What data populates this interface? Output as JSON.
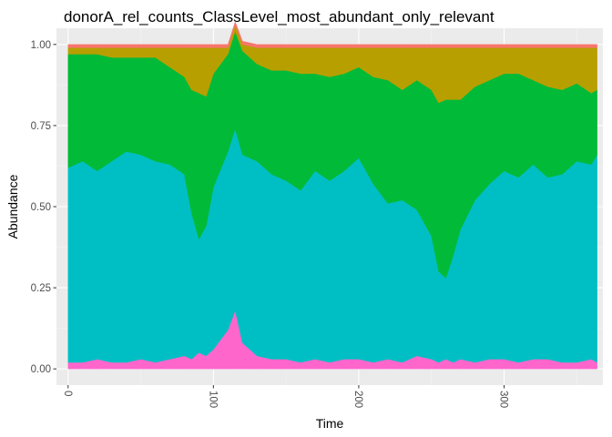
{
  "chart_data": {
    "type": "area",
    "title": "donorA_rel_counts_ClassLevel_most_abundant_only_relevant",
    "xlabel": "Time",
    "ylabel": "Abundance",
    "xlim": [
      -8,
      368
    ],
    "ylim": [
      -0.05,
      1.05
    ],
    "xticks": [
      0,
      100,
      200,
      300
    ],
    "xtick_labels": [
      "0",
      "100",
      "200",
      "300"
    ],
    "yticks": [
      0,
      0.25,
      0.5,
      0.75,
      1.0
    ],
    "ytick_labels": [
      "0.00",
      "0.25",
      "0.50",
      "0.75",
      "1.00"
    ],
    "xtick_label_rotation": 90,
    "grid": true,
    "legend": "none",
    "colors": {
      "panel_background": "#ebebeb",
      "grid_major": "#ffffff",
      "grid_minor": "#f4f4f4"
    },
    "x": [
      0,
      10,
      20,
      30,
      40,
      50,
      60,
      70,
      80,
      85,
      90,
      95,
      100,
      110,
      115,
      120,
      130,
      140,
      150,
      160,
      170,
      180,
      190,
      200,
      210,
      220,
      230,
      240,
      250,
      255,
      260,
      265,
      270,
      280,
      290,
      300,
      310,
      320,
      330,
      340,
      350,
      360,
      364
    ],
    "series": [
      {
        "color": "#ff66cc",
        "values": [
          0.02,
          0.02,
          0.03,
          0.02,
          0.02,
          0.03,
          0.02,
          0.03,
          0.04,
          0.03,
          0.05,
          0.04,
          0.06,
          0.12,
          0.18,
          0.08,
          0.04,
          0.03,
          0.03,
          0.02,
          0.03,
          0.02,
          0.03,
          0.03,
          0.02,
          0.03,
          0.02,
          0.04,
          0.03,
          0.02,
          0.03,
          0.02,
          0.03,
          0.02,
          0.03,
          0.03,
          0.02,
          0.03,
          0.03,
          0.02,
          0.02,
          0.03,
          0.02
        ]
      },
      {
        "color": "#00bfc4",
        "values": [
          0.6,
          0.62,
          0.58,
          0.62,
          0.65,
          0.63,
          0.62,
          0.6,
          0.56,
          0.45,
          0.35,
          0.4,
          0.5,
          0.55,
          0.56,
          0.58,
          0.6,
          0.57,
          0.55,
          0.53,
          0.58,
          0.56,
          0.58,
          0.62,
          0.55,
          0.48,
          0.5,
          0.45,
          0.38,
          0.28,
          0.25,
          0.33,
          0.4,
          0.5,
          0.54,
          0.58,
          0.57,
          0.6,
          0.56,
          0.58,
          0.62,
          0.6,
          0.64
        ]
      },
      {
        "color": "#00ba38",
        "values": [
          0.35,
          0.33,
          0.36,
          0.32,
          0.29,
          0.3,
          0.32,
          0.3,
          0.3,
          0.38,
          0.45,
          0.4,
          0.35,
          0.3,
          0.3,
          0.32,
          0.3,
          0.32,
          0.34,
          0.36,
          0.3,
          0.32,
          0.3,
          0.28,
          0.33,
          0.38,
          0.34,
          0.4,
          0.45,
          0.52,
          0.55,
          0.48,
          0.4,
          0.35,
          0.32,
          0.3,
          0.32,
          0.26,
          0.28,
          0.26,
          0.24,
          0.22,
          0.2
        ]
      },
      {
        "color": "#b79f00",
        "values": [
          0.02,
          0.02,
          0.02,
          0.03,
          0.03,
          0.03,
          0.03,
          0.06,
          0.09,
          0.13,
          0.14,
          0.15,
          0.08,
          0.02,
          0.02,
          0.02,
          0.05,
          0.07,
          0.07,
          0.08,
          0.08,
          0.09,
          0.08,
          0.06,
          0.09,
          0.1,
          0.13,
          0.1,
          0.13,
          0.17,
          0.16,
          0.16,
          0.16,
          0.12,
          0.1,
          0.08,
          0.08,
          0.1,
          0.12,
          0.13,
          0.11,
          0.14,
          0.13
        ]
      },
      {
        "color": "#f8766d",
        "values": [
          0.01,
          0.01,
          0.01,
          0.01,
          0.01,
          0.01,
          0.01,
          0.01,
          0.01,
          0.01,
          0.01,
          0.01,
          0.01,
          0.01,
          0.01,
          0.01,
          0.01,
          0.01,
          0.01,
          0.01,
          0.01,
          0.01,
          0.01,
          0.01,
          0.01,
          0.01,
          0.01,
          0.01,
          0.01,
          0.01,
          0.01,
          0.01,
          0.01,
          0.01,
          0.01,
          0.01,
          0.01,
          0.01,
          0.01,
          0.01,
          0.01,
          0.01,
          0.01
        ]
      }
    ]
  }
}
